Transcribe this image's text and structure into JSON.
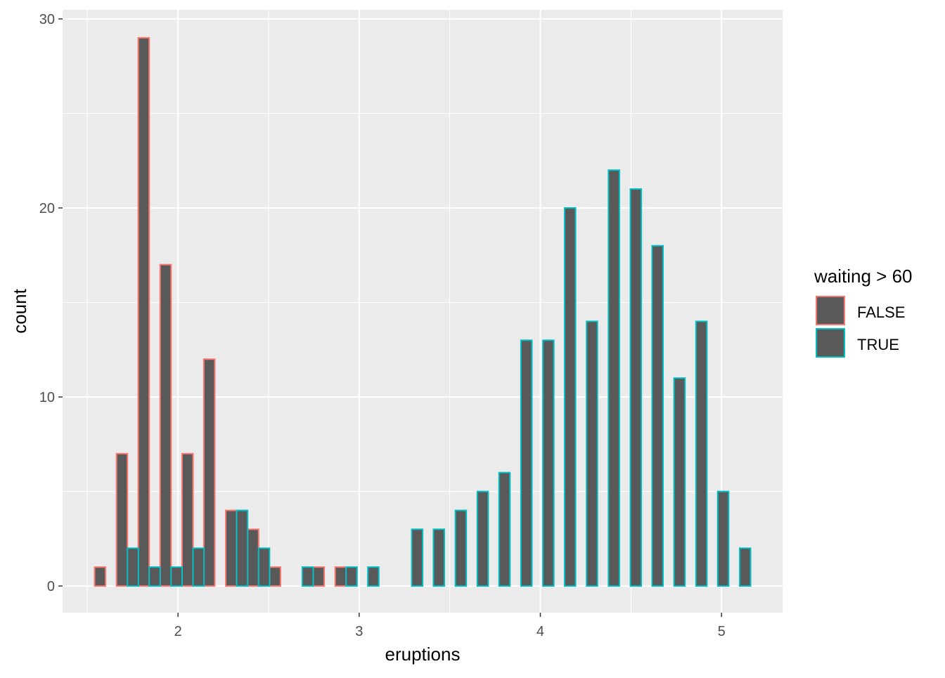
{
  "chart_data": {
    "type": "bar",
    "subtype": "histogram-dodged",
    "title": "",
    "xlabel": "eruptions",
    "ylabel": "count",
    "xlim": [
      1.363,
      5.337
    ],
    "ylim": [
      -1.41,
      30.48
    ],
    "x_ticks": [
      2,
      3,
      4,
      5
    ],
    "x_tick_labels": [
      "2",
      "3",
      "4",
      "5"
    ],
    "y_ticks": [
      0,
      10,
      20,
      30
    ],
    "y_tick_labels": [
      "0",
      "10",
      "20",
      "30"
    ],
    "grid": true,
    "bins": 30,
    "bin_width": 0.1207,
    "bin_centers": [
      1.6,
      1.721,
      1.841,
      1.962,
      2.083,
      2.203,
      2.324,
      2.445,
      2.566,
      2.686,
      2.807,
      2.928,
      3.048,
      3.169,
      3.29,
      3.41,
      3.531,
      3.652,
      3.772,
      3.893,
      4.014,
      4.134,
      4.255,
      4.376,
      4.497,
      4.617,
      4.738,
      4.859,
      4.979,
      5.1
    ],
    "legend": {
      "title": "waiting > 60",
      "placement": "right"
    },
    "series": [
      {
        "name": "FALSE",
        "color": "#F8766D",
        "values": [
          1,
          7,
          29,
          17,
          7,
          12,
          4,
          3,
          1,
          0,
          1,
          1,
          0,
          0,
          0,
          0,
          0,
          0,
          0,
          0,
          0,
          0,
          0,
          0,
          0,
          0,
          0,
          0,
          0,
          0
        ]
      },
      {
        "name": "TRUE",
        "color": "#00BFC4",
        "values": [
          0,
          2,
          1,
          1,
          2,
          0,
          4,
          2,
          0,
          1,
          0,
          1,
          1,
          0,
          3,
          3,
          4,
          5,
          6,
          13,
          13,
          20,
          14,
          22,
          21,
          18,
          11,
          14,
          5,
          2
        ]
      }
    ],
    "bar_fill": "#595959",
    "panel_background": "#EBEBEB"
  }
}
